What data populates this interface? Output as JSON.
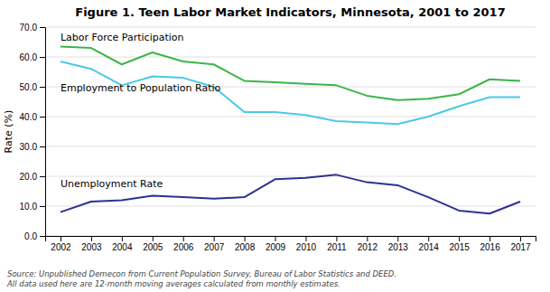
{
  "chart_data": {
    "type": "line",
    "title": "Figure 1. Teen Labor Market Indicators, Minnesota, 2001 to 2017",
    "y_label": "Rate (%)",
    "x": [
      2002,
      2003,
      2004,
      2005,
      2006,
      2007,
      2008,
      2009,
      2010,
      2011,
      2012,
      2013,
      2014,
      2015,
      2016,
      2017
    ],
    "xlim": [
      2001.5,
      2017.5
    ],
    "xticks": [
      2002,
      2003,
      2004,
      2005,
      2006,
      2007,
      2008,
      2009,
      2010,
      2011,
      2012,
      2013,
      2014,
      2015,
      2016,
      2017
    ],
    "ylim": [
      0.0,
      70.0
    ],
    "yticks": [
      {
        "value": 0.0,
        "label": "0.0"
      },
      {
        "value": 10.0,
        "label": "10.0"
      },
      {
        "value": 20.0,
        "label": "20.0"
      },
      {
        "value": 30.0,
        "label": "30.0"
      },
      {
        "value": 40.0,
        "label": "40.0"
      },
      {
        "value": 50.0,
        "label": "50.0"
      },
      {
        "value": 60.0,
        "label": "60.0"
      },
      {
        "value": 70.0,
        "label": "70.0"
      }
    ],
    "grid": true,
    "series": [
      {
        "color": "#3cb54a",
        "values": [
          63.5,
          63.0,
          57.5,
          61.5,
          58.5,
          57.5,
          52.0,
          51.5,
          51.0,
          50.5,
          47.0,
          45.5,
          46.0,
          47.5,
          52.5,
          52.0
        ]
      },
      {
        "color": "#4dc8e8",
        "values": [
          58.5,
          56.0,
          50.5,
          53.5,
          53.0,
          50.0,
          41.5,
          41.5,
          40.5,
          38.5,
          38.0,
          37.5,
          40.0,
          43.5,
          46.5,
          46.5
        ]
      },
      {
        "color": "#2e3192",
        "values": [
          8.0,
          11.5,
          12.0,
          13.5,
          13.0,
          12.5,
          13.0,
          19.0,
          19.5,
          20.5,
          18.0,
          17.0,
          13.0,
          8.5,
          7.5,
          11.5
        ]
      }
    ],
    "annotations": [
      {
        "text": "Labor Force Participation",
        "x": 2002.0,
        "y": 65.5
      },
      {
        "text": "Employment to Population Ratio",
        "x": 2002.0,
        "y": 48.5
      },
      {
        "text": "Unemployment Rate",
        "x": 2002.0,
        "y": 16.5
      }
    ],
    "source": [
      "Source: Unpublished Demecon from Current Population Survey, Bureau of Labor Statistics and DEED.",
      "All data used here are 12-month moving averages calculated from monthly estimates."
    ]
  }
}
